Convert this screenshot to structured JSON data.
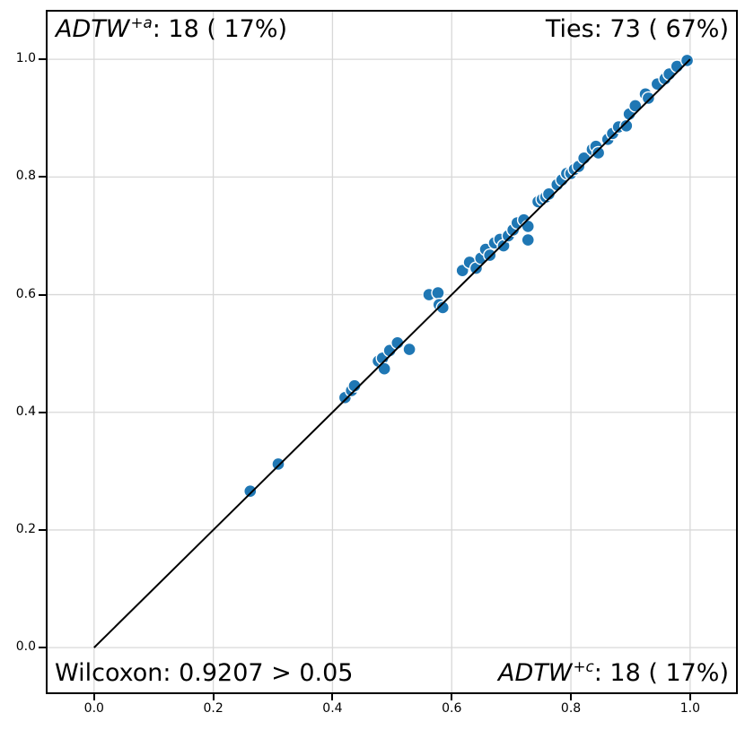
{
  "figure": {
    "background_color": "#ffffff",
    "spine_color": "#000000",
    "grid_color": "#d8d8d8",
    "marker_color": "#1f77b4",
    "marker_edge_color": "#ffffff",
    "line_color": "#000000",
    "tick_label_color": "#000000"
  },
  "annotations": {
    "top_left": {
      "italic_text": "ADTW",
      "superscript": "+a",
      "rest": ": 18 ( 17%)"
    },
    "top_right": {
      "italic_text": "",
      "superscript": "",
      "rest": "Ties: 73 ( 67%)"
    },
    "bottom_left": {
      "italic_text": "",
      "superscript": "",
      "rest": "Wilcoxon: 0.9207 > 0.05"
    },
    "bottom_right": {
      "italic_text": "ADTW",
      "superscript": "+c",
      "rest": ": 18 ( 17%)"
    }
  },
  "chart_data": {
    "type": "scatter",
    "title": "",
    "xlabel": "",
    "ylabel": "",
    "xlim": [
      -0.078,
      1.077
    ],
    "ylim": [
      -0.076,
      1.081
    ],
    "x_ticks": {
      "values": [
        0.0,
        0.2,
        0.4,
        0.6,
        0.8,
        1.0
      ],
      "labels": [
        "0.0",
        "0.2",
        "0.4",
        "0.6",
        "0.8",
        "1.0"
      ]
    },
    "y_ticks": {
      "values": [
        0.0,
        0.2,
        0.4,
        0.6,
        0.8,
        1.0
      ],
      "labels": [
        "0.0",
        "0.2",
        "0.4",
        "0.6",
        "0.8",
        "1.0"
      ]
    },
    "grid": true,
    "legend": false,
    "identity_line": {
      "from": [
        0.0,
        0.0
      ],
      "to": [
        1.0,
        1.0
      ]
    },
    "stats": {
      "adtw_a_label": "ADTW+a",
      "adtw_a_wins": 18,
      "adtw_a_win_pct": 17,
      "adtw_c_label": "ADTW+c",
      "adtw_c_wins": 18,
      "adtw_c_win_pct": 17,
      "ties": 73,
      "ties_pct": 67,
      "wilcoxon_p": 0.9207,
      "alpha": 0.05
    },
    "points": [
      [
        0.262,
        0.266
      ],
      [
        0.309,
        0.312
      ],
      [
        0.421,
        0.425
      ],
      [
        0.432,
        0.437
      ],
      [
        0.437,
        0.445
      ],
      [
        0.477,
        0.487
      ],
      [
        0.484,
        0.492
      ],
      [
        0.487,
        0.474
      ],
      [
        0.496,
        0.505
      ],
      [
        0.509,
        0.518
      ],
      [
        0.529,
        0.507
      ],
      [
        0.562,
        0.6
      ],
      [
        0.577,
        0.603
      ],
      [
        0.579,
        0.583
      ],
      [
        0.585,
        0.578
      ],
      [
        0.618,
        0.641
      ],
      [
        0.63,
        0.655
      ],
      [
        0.641,
        0.645
      ],
      [
        0.649,
        0.662
      ],
      [
        0.657,
        0.677
      ],
      [
        0.664,
        0.667
      ],
      [
        0.672,
        0.688
      ],
      [
        0.681,
        0.694
      ],
      [
        0.687,
        0.683
      ],
      [
        0.695,
        0.7
      ],
      [
        0.703,
        0.71
      ],
      [
        0.71,
        0.722
      ],
      [
        0.721,
        0.727
      ],
      [
        0.728,
        0.716
      ],
      [
        0.728,
        0.693
      ],
      [
        0.745,
        0.758
      ],
      [
        0.752,
        0.762
      ],
      [
        0.758,
        0.766
      ],
      [
        0.763,
        0.771
      ],
      [
        0.777,
        0.787
      ],
      [
        0.785,
        0.795
      ],
      [
        0.793,
        0.806
      ],
      [
        0.8,
        0.806
      ],
      [
        0.806,
        0.813
      ],
      [
        0.813,
        0.818
      ],
      [
        0.822,
        0.832
      ],
      [
        0.836,
        0.847
      ],
      [
        0.842,
        0.852
      ],
      [
        0.846,
        0.841
      ],
      [
        0.862,
        0.864
      ],
      [
        0.87,
        0.874
      ],
      [
        0.88,
        0.885
      ],
      [
        0.893,
        0.887
      ],
      [
        0.898,
        0.907
      ],
      [
        0.908,
        0.921
      ],
      [
        0.925,
        0.941
      ],
      [
        0.93,
        0.934
      ],
      [
        0.945,
        0.958
      ],
      [
        0.958,
        0.967
      ],
      [
        0.965,
        0.975
      ],
      [
        0.978,
        0.988
      ],
      [
        0.995,
        0.998
      ]
    ]
  }
}
